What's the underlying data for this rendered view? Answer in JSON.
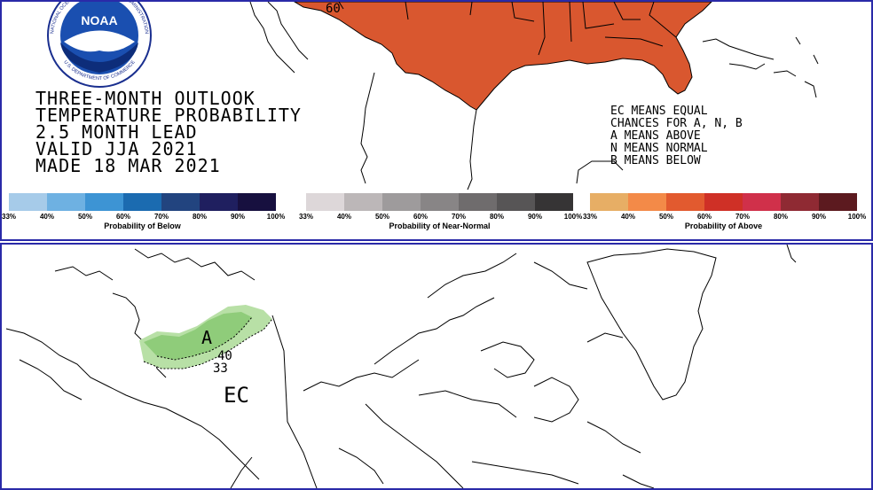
{
  "logo": {
    "name": "NOAA",
    "ring_text": "NATIONAL OCEANIC AND ATMOSPHERIC ADMINISTRATION",
    "ring_bottom": "U.S. DEPARTMENT OF COMMERCE"
  },
  "title_lines": [
    "THREE-MONTH OUTLOOK",
    "TEMPERATURE PROBABILITY",
    "2.5 MONTH LEAD",
    "VALID JJA 2021",
    "MADE 18 MAR 2021"
  ],
  "legend_note": [
    "EC MEANS EQUAL",
    "CHANCES FOR A, N, B",
    "A MEANS ABOVE",
    "N MEANS NORMAL",
    "B MEANS BELOW"
  ],
  "color_bars": [
    {
      "title": "Probability of Below",
      "colors": [
        "#a6cbe9",
        "#6eb1e2",
        "#3d94d4",
        "#1b6bb0",
        "#22447f",
        "#1f1f5f",
        "#17103f"
      ],
      "ticks": [
        "33%",
        "40%",
        "50%",
        "60%",
        "70%",
        "80%",
        "90%",
        "100%"
      ]
    },
    {
      "title": "Probability of Near-Normal",
      "colors": [
        "#ddd7d9",
        "#bcb7b8",
        "#9e9b9c",
        "#888586",
        "#6f6c6d",
        "#575556",
        "#363435"
      ],
      "ticks": [
        "33%",
        "40%",
        "50%",
        "60%",
        "70%",
        "80%",
        "90%",
        "100%"
      ]
    },
    {
      "title": "Probability of Above",
      "colors": [
        "#e7ae65",
        "#f38a48",
        "#e25a2f",
        "#cf3026",
        "#d0304a",
        "#8f2a33",
        "#5c1a1f"
      ],
      "ticks": [
        "33%",
        "40%",
        "50%",
        "60%",
        "70%",
        "80%",
        "90%",
        "100%"
      ]
    }
  ],
  "top_map": {
    "fill_color": "#d9572f",
    "contour_label": "60"
  },
  "bottom_map": {
    "region_color": "#8fcc7a",
    "region_light_color": "#b8e0a6",
    "label_a": "A",
    "label_40": "40",
    "label_33": "33",
    "label_ec": "EC"
  }
}
